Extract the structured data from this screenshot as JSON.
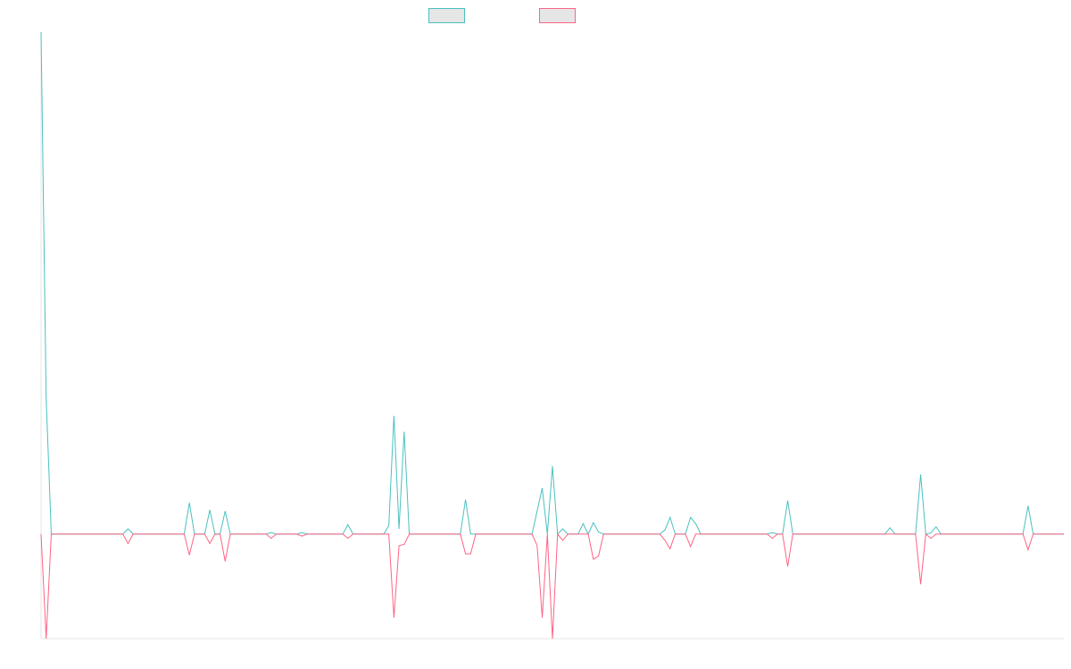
{
  "chart_data": {
    "type": "line",
    "title": "",
    "xlabel": "",
    "ylabel": "",
    "grid": false,
    "legend_position": "top-center",
    "ylim": [
      -1,
      4.8
    ],
    "categories_count": 200,
    "series": [
      {
        "color": "#4BC0C0",
        "legend_fill": "#E6E6E6",
        "points": [
          [
            0,
            4.8
          ],
          [
            1,
            1.3
          ],
          [
            2,
            0
          ],
          [
            16,
            0
          ],
          [
            17,
            0.05
          ],
          [
            18,
            0
          ],
          [
            28,
            0
          ],
          [
            29,
            0.3
          ],
          [
            30,
            0
          ],
          [
            32,
            0
          ],
          [
            33,
            0.23
          ],
          [
            34,
            0
          ],
          [
            35,
            0
          ],
          [
            36,
            0.22
          ],
          [
            37,
            0
          ],
          [
            44,
            0
          ],
          [
            45,
            0.015
          ],
          [
            46,
            0
          ],
          [
            50,
            0
          ],
          [
            51,
            0.015
          ],
          [
            52,
            0
          ],
          [
            59,
            0
          ],
          [
            60,
            0.09
          ],
          [
            61,
            0
          ],
          [
            67,
            0
          ],
          [
            68,
            0.08
          ],
          [
            69,
            1.13
          ],
          [
            70,
            0.05
          ],
          [
            71,
            0.98
          ],
          [
            72,
            0
          ],
          [
            82,
            0
          ],
          [
            83,
            0.33
          ],
          [
            84,
            0
          ],
          [
            96,
            0
          ],
          [
            97,
            0.22
          ],
          [
            98,
            0.44
          ],
          [
            99,
            0
          ],
          [
            100,
            0.65
          ],
          [
            101,
            0
          ],
          [
            102,
            0.05
          ],
          [
            103,
            0
          ],
          [
            105,
            0
          ],
          [
            106,
            0.1
          ],
          [
            107,
            0
          ],
          [
            108,
            0.11
          ],
          [
            109,
            0.02
          ],
          [
            110,
            0
          ],
          [
            121,
            0
          ],
          [
            122,
            0.04
          ],
          [
            123,
            0.16
          ],
          [
            124,
            0
          ],
          [
            126,
            0
          ],
          [
            127,
            0.16
          ],
          [
            128,
            0.1
          ],
          [
            129,
            0
          ],
          [
            142,
            0
          ],
          [
            143,
            0.015
          ],
          [
            144,
            0
          ],
          [
            145,
            0
          ],
          [
            146,
            0.32
          ],
          [
            147,
            0
          ],
          [
            165,
            0
          ],
          [
            166,
            0.06
          ],
          [
            167,
            0
          ],
          [
            171,
            0
          ],
          [
            172,
            0.57
          ],
          [
            173,
            0
          ],
          [
            174,
            0.01
          ],
          [
            175,
            0.07
          ],
          [
            176,
            0
          ],
          [
            192,
            0
          ],
          [
            193,
            0.27
          ],
          [
            194,
            0
          ],
          [
            200,
            0
          ]
        ]
      },
      {
        "color": "#FF6384",
        "legend_fill": "#E6E6E6",
        "points": [
          [
            0,
            0
          ],
          [
            1,
            -1
          ],
          [
            2,
            0
          ],
          [
            16,
            0
          ],
          [
            17,
            -0.09
          ],
          [
            18,
            0
          ],
          [
            28,
            0
          ],
          [
            29,
            -0.2
          ],
          [
            30,
            0
          ],
          [
            32,
            0
          ],
          [
            33,
            -0.09
          ],
          [
            34,
            0
          ],
          [
            35,
            0
          ],
          [
            36,
            -0.26
          ],
          [
            37,
            0
          ],
          [
            44,
            0
          ],
          [
            45,
            -0.04
          ],
          [
            46,
            0
          ],
          [
            50,
            0
          ],
          [
            51,
            -0.02
          ],
          [
            52,
            0
          ],
          [
            59,
            0
          ],
          [
            60,
            -0.04
          ],
          [
            61,
            0
          ],
          [
            67,
            0
          ],
          [
            68,
            0
          ],
          [
            69,
            -0.8
          ],
          [
            70,
            -0.11
          ],
          [
            71,
            -0.1
          ],
          [
            72,
            0
          ],
          [
            82,
            0
          ],
          [
            83,
            -0.19
          ],
          [
            84,
            -0.19
          ],
          [
            85,
            0
          ],
          [
            96,
            0
          ],
          [
            97,
            -0.11
          ],
          [
            98,
            -0.8
          ],
          [
            99,
            0
          ],
          [
            100,
            -1
          ],
          [
            101,
            0
          ],
          [
            102,
            -0.06
          ],
          [
            103,
            0
          ],
          [
            107,
            0
          ],
          [
            108,
            -0.24
          ],
          [
            109,
            -0.21
          ],
          [
            110,
            0
          ],
          [
            121,
            0
          ],
          [
            122,
            -0.06
          ],
          [
            123,
            -0.14
          ],
          [
            124,
            0
          ],
          [
            126,
            0
          ],
          [
            127,
            -0.12
          ],
          [
            128,
            0
          ],
          [
            142,
            0
          ],
          [
            143,
            -0.04
          ],
          [
            144,
            0
          ],
          [
            145,
            0
          ],
          [
            146,
            -0.31
          ],
          [
            147,
            0
          ],
          [
            165,
            0
          ],
          [
            166,
            0
          ],
          [
            167,
            0
          ],
          [
            171,
            0
          ],
          [
            172,
            -0.48
          ],
          [
            173,
            0
          ],
          [
            174,
            -0.04
          ],
          [
            175,
            0
          ],
          [
            192,
            0
          ],
          [
            193,
            -0.15
          ],
          [
            194,
            0
          ],
          [
            200,
            0
          ]
        ]
      }
    ]
  }
}
